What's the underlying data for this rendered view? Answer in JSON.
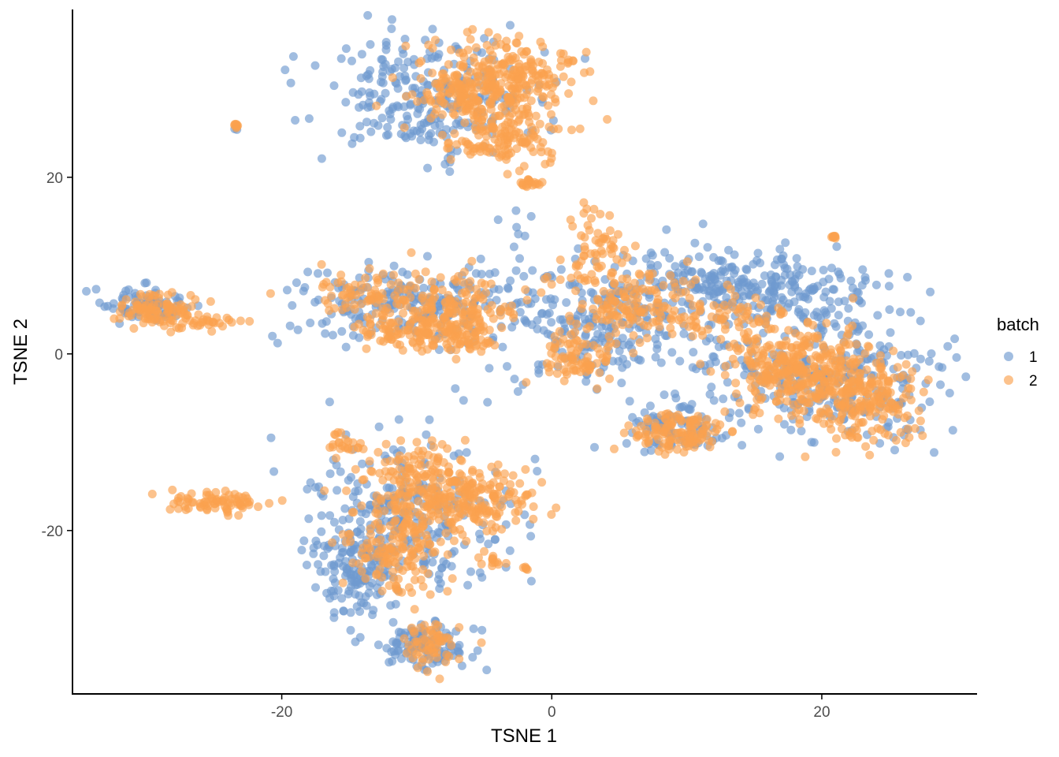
{
  "chart_data": {
    "type": "scatter",
    "title": "",
    "xlabel": "TSNE 1",
    "ylabel": "TSNE 2",
    "xlim": [
      -35.5,
      31.5
    ],
    "ylim": [
      -38.5,
      39
    ],
    "x_ticks": [
      -20,
      0,
      20
    ],
    "y_ticks": [
      -20,
      0,
      20
    ],
    "x_tick_labels": [
      "-20",
      "0",
      "20"
    ],
    "y_tick_labels": [
      "-20",
      "0",
      "20"
    ],
    "grid": false,
    "legend": {
      "title": "batch",
      "position": "right"
    },
    "point_alpha": 0.65,
    "series": [
      {
        "name": "1",
        "color": "#6f99cf",
        "clusters": [
          {
            "cx": -9.3,
            "cy": 29.2,
            "sx": 4.0,
            "sy": 3.3,
            "n": 260
          },
          {
            "cx": -30.3,
            "cy": 5.4,
            "sx": 1.6,
            "sy": 1.0,
            "n": 80
          },
          {
            "cx": -10.5,
            "cy": 5.8,
            "sx": 4.6,
            "sy": 2.2,
            "n": 220
          },
          {
            "cx": 4.2,
            "cy": 3.0,
            "sx": 5.0,
            "sy": 3.5,
            "n": 260
          },
          {
            "cx": 12.0,
            "cy": 8.5,
            "sx": 3.5,
            "sy": 2.0,
            "n": 160
          },
          {
            "cx": 19.5,
            "cy": 6.5,
            "sx": 3.2,
            "sy": 2.0,
            "n": 110
          },
          {
            "cx": 21.0,
            "cy": -3.0,
            "sx": 4.2,
            "sy": 3.8,
            "n": 280
          },
          {
            "cx": 9.2,
            "cy": -8.5,
            "sx": 2.2,
            "sy": 1.6,
            "n": 90
          },
          {
            "cx": -10.5,
            "cy": -18.5,
            "sx": 3.8,
            "sy": 4.0,
            "n": 240
          },
          {
            "cx": -14.5,
            "cy": -24.0,
            "sx": 1.6,
            "sy": 3.0,
            "n": 140
          },
          {
            "cx": -9.5,
            "cy": -33.0,
            "sx": 1.8,
            "sy": 1.4,
            "n": 110
          },
          {
            "cx": -2.5,
            "cy": 14.5,
            "sx": 1.0,
            "sy": 1.2,
            "n": 6
          },
          {
            "cx": -23.3,
            "cy": 25.4,
            "sx": 0.1,
            "sy": 0.1,
            "n": 2
          }
        ]
      },
      {
        "name": "2",
        "color": "#fba14f",
        "clusters": [
          {
            "cx": -3.3,
            "cy": 30.5,
            "sx": 2.8,
            "sy": 2.5,
            "n": 300
          },
          {
            "cx": -3.5,
            "cy": 24.0,
            "sx": 1.8,
            "sy": 1.2,
            "n": 110
          },
          {
            "cx": -7.0,
            "cy": 29.0,
            "sx": 1.8,
            "sy": 1.5,
            "n": 70
          },
          {
            "cx": -1.6,
            "cy": 19.3,
            "sx": 0.5,
            "sy": 0.3,
            "n": 18
          },
          {
            "cx": -29.0,
            "cy": 5.0,
            "sx": 1.5,
            "sy": 0.9,
            "n": 90
          },
          {
            "cx": -26.0,
            "cy": 3.6,
            "sx": 1.6,
            "sy": 0.4,
            "n": 35
          },
          {
            "cx": -23.3,
            "cy": 25.9,
            "sx": 0.1,
            "sy": 0.1,
            "n": 8
          },
          {
            "cx": -14.0,
            "cy": 6.8,
            "sx": 2.0,
            "sy": 1.3,
            "n": 70
          },
          {
            "cx": -7.0,
            "cy": 5.0,
            "sx": 2.2,
            "sy": 2.0,
            "n": 170
          },
          {
            "cx": -11.5,
            "cy": 2.5,
            "sx": 1.5,
            "sy": 1.0,
            "n": 60
          },
          {
            "cx": -7.5,
            "cy": 2.0,
            "sx": 1.8,
            "sy": 0.8,
            "n": 60
          },
          {
            "cx": 3.0,
            "cy": 10.5,
            "sx": 1.4,
            "sy": 2.6,
            "n": 70
          },
          {
            "cx": 6.5,
            "cy": 5.5,
            "sx": 2.5,
            "sy": 2.0,
            "n": 140
          },
          {
            "cx": 2.3,
            "cy": -0.5,
            "sx": 1.4,
            "sy": 1.6,
            "n": 80
          },
          {
            "cx": 9.2,
            "cy": -9.0,
            "sx": 1.8,
            "sy": 1.2,
            "n": 120
          },
          {
            "cx": 13.5,
            "cy": 4.0,
            "sx": 1.8,
            "sy": 1.5,
            "n": 60
          },
          {
            "cx": 18.0,
            "cy": -1.5,
            "sx": 2.6,
            "sy": 2.5,
            "n": 280
          },
          {
            "cx": 23.0,
            "cy": -5.0,
            "sx": 2.2,
            "sy": 2.4,
            "n": 230
          },
          {
            "cx": 20.8,
            "cy": 13.3,
            "sx": 0.1,
            "sy": 0.1,
            "n": 8
          },
          {
            "cx": -9.5,
            "cy": -15.5,
            "sx": 2.5,
            "sy": 2.5,
            "n": 230
          },
          {
            "cx": -5.0,
            "cy": -16.5,
            "sx": 1.8,
            "sy": 2.0,
            "n": 120
          },
          {
            "cx": -11.5,
            "cy": -22.5,
            "sx": 1.8,
            "sy": 2.5,
            "n": 140
          },
          {
            "cx": -9.0,
            "cy": -33.0,
            "sx": 1.0,
            "sy": 1.2,
            "n": 60
          },
          {
            "cx": -25.0,
            "cy": -16.7,
            "sx": 1.7,
            "sy": 0.6,
            "n": 80
          },
          {
            "cx": -15.5,
            "cy": -10.2,
            "sx": 0.7,
            "sy": 0.6,
            "n": 20
          },
          {
            "cx": -4.3,
            "cy": -23.5,
            "sx": 0.6,
            "sy": 0.3,
            "n": 12
          },
          {
            "cx": -1.8,
            "cy": -24.2,
            "sx": 0.1,
            "sy": 0.1,
            "n": 5
          }
        ]
      }
    ]
  }
}
